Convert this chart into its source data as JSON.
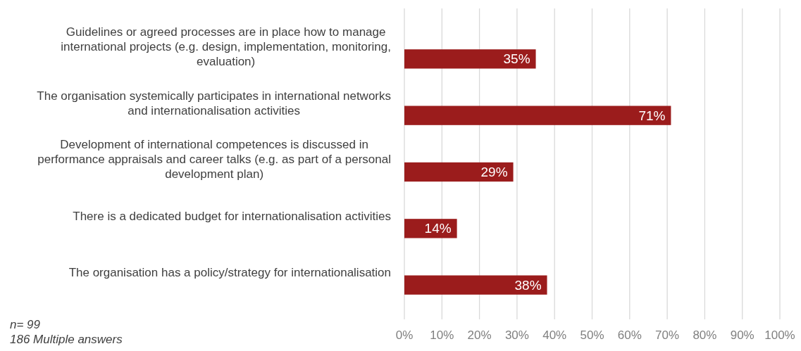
{
  "chart_data": {
    "type": "bar",
    "orientation": "horizontal",
    "categories": [
      "Guidelines or agreed processes are in place how to manage international projects (e.g. design, implementation, monitoring, evaluation)",
      "The organisation systemically participates in international networks and internationalisation activities",
      "Development of international competences is discussed in performance appraisals and career talks (e.g. as part of a personal development plan)",
      "There is a dedicated budget for internationalisation activities",
      "The organisation has a policy/strategy for internationalisation"
    ],
    "values": [
      35,
      71,
      29,
      14,
      38
    ],
    "value_labels": [
      "35%",
      "71%",
      "29%",
      "14%",
      "38%"
    ],
    "color": "#9b1c1c",
    "xlim": [
      0,
      100
    ],
    "xticks": [
      {
        "value": 0,
        "label": "0%"
      },
      {
        "value": 10,
        "label": "10%"
      },
      {
        "value": 20,
        "label": "20%"
      },
      {
        "value": 30,
        "label": "30%"
      },
      {
        "value": 40,
        "label": "40%"
      },
      {
        "value": 50,
        "label": "50%"
      },
      {
        "value": 60,
        "label": "60%"
      },
      {
        "value": 70,
        "label": "70%"
      },
      {
        "value": 80,
        "label": "80%"
      },
      {
        "value": 90,
        "label": "90%"
      },
      {
        "value": 100,
        "label": "100%"
      }
    ],
    "grid": "x",
    "annotations": [
      "n= 99",
      "186 Multiple answers"
    ]
  }
}
